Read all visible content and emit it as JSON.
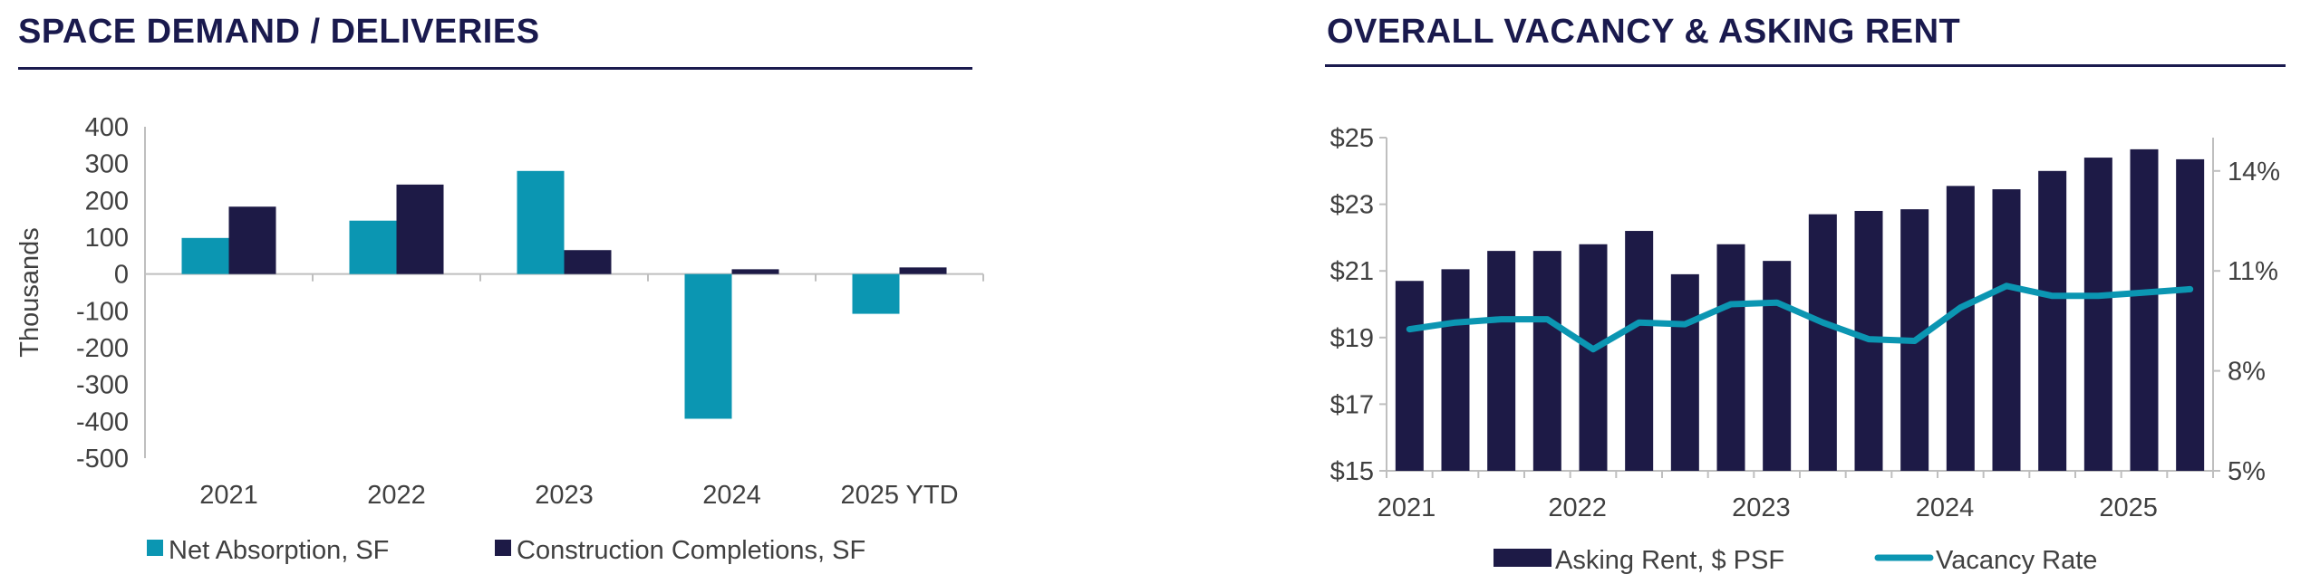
{
  "colors": {
    "teal": "#0b96b2",
    "navy": "#1d1a46",
    "title": "#1a1a4e",
    "axis_text": "#404040"
  },
  "left_chart": {
    "title": "SPACE DEMAND / DELIVERIES",
    "chart_data": {
      "type": "bar",
      "categories": [
        "2021",
        "2022",
        "2023",
        "2024",
        "2025 YTD"
      ],
      "series": [
        {
          "name": "Net Absorption, SF",
          "values": [
            98,
            145,
            280,
            -393,
            -108
          ]
        },
        {
          "name": "Construction Completions, SF",
          "values": [
            183,
            243,
            65,
            13,
            18
          ]
        }
      ],
      "ylabel": "Thousands",
      "ylim": [
        -500,
        400
      ],
      "yticks": [
        "400",
        "300",
        "200",
        "100",
        "0",
        "-100",
        "-200",
        "-300",
        "-400",
        "-500"
      ],
      "legend_position": "bottom"
    }
  },
  "right_chart": {
    "title": "OVERALL VACANCY & ASKING RENT",
    "chart_data": {
      "type": "bar",
      "x_labels": [
        "2021",
        "2022",
        "2023",
        "2024",
        "2025"
      ],
      "series": [
        {
          "name": "Asking Rent, $ PSF",
          "type": "bar",
          "axis": "left",
          "values": [
            20.7,
            21.05,
            21.6,
            21.6,
            21.8,
            22.2,
            20.9,
            21.8,
            21.3,
            22.7,
            22.8,
            22.85,
            23.55,
            23.45,
            24.0,
            24.4,
            24.65,
            24.35
          ]
        },
        {
          "name": "Vacancy Rate",
          "type": "line",
          "axis": "right",
          "values": [
            9.25,
            9.45,
            9.55,
            9.55,
            8.65,
            9.45,
            9.4,
            10.0,
            10.05,
            9.45,
            8.95,
            8.9,
            9.9,
            10.55,
            10.25,
            10.25,
            10.35,
            10.45
          ]
        }
      ],
      "ylim_left": [
        15,
        25
      ],
      "yticks_left": [
        "$25",
        "$23",
        "$21",
        "$19",
        "$17",
        "$15"
      ],
      "ylim_right": [
        5,
        15
      ],
      "yticks_right": [
        "14%",
        "11%",
        "8%",
        "5%"
      ],
      "legend_position": "bottom"
    }
  }
}
